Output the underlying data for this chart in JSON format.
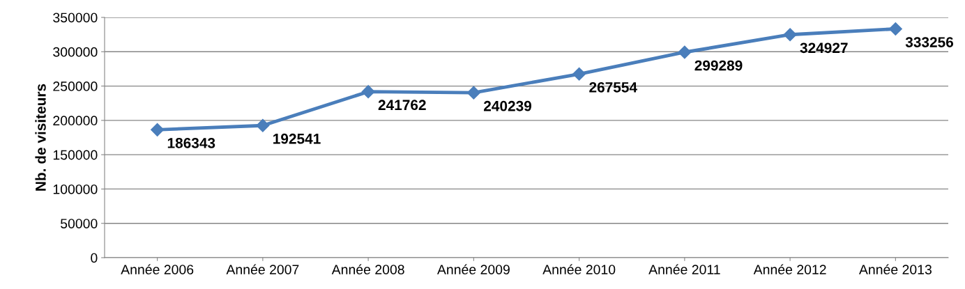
{
  "chart_data": {
    "type": "line",
    "ylabel": "Nb. de visiteurs",
    "categories": [
      "Année 2006",
      "Année 2007",
      "Année 2008",
      "Année 2009",
      "Année 2010",
      "Année 2011",
      "Année 2012",
      "Année 2013"
    ],
    "series": [
      {
        "color": "#4a7ebb",
        "values": [
          186343,
          192541,
          241762,
          240239,
          267554,
          299289,
          324927,
          333256
        ]
      }
    ],
    "ylim": [
      0,
      350000
    ],
    "yticks": [
      0,
      50000,
      100000,
      150000,
      200000,
      250000,
      300000,
      350000
    ],
    "grid": "y",
    "marker": "diamond",
    "line_style": "solid",
    "data_labels": true
  }
}
